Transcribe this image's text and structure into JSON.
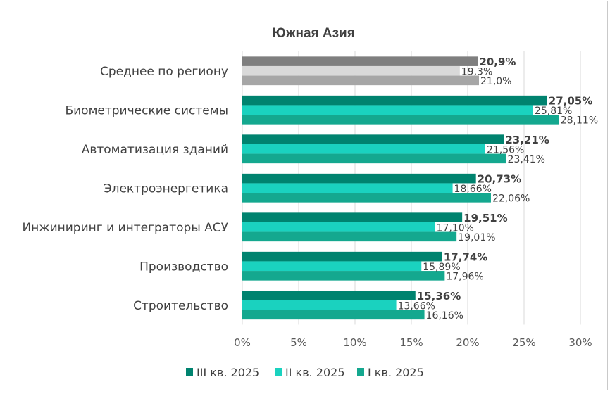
{
  "chart_data": {
    "type": "bar",
    "orientation": "horizontal",
    "title": "Южная Азия",
    "categories": [
      "Среднее по региону",
      "Биометрические системы",
      "Автоматизация зданий",
      "Электроэнергетика",
      "Инжиниринг и интеграторы АСУ",
      "Производство",
      "Строительство"
    ],
    "series": [
      {
        "name": "III кв. 2025",
        "color": "#00836f",
        "highlight_color": "#7f7f7f",
        "values": [
          20.9,
          27.05,
          23.21,
          20.73,
          19.51,
          17.74,
          15.36
        ],
        "labels": [
          "20,9%",
          "27,05%",
          "23,21%",
          "20,73%",
          "19,51%",
          "17,74%",
          "15,36%"
        ]
      },
      {
        "name": "II кв. 2025",
        "color": "#1ad2bf",
        "highlight_color": "#d9d9d9",
        "values": [
          19.3,
          25.81,
          21.56,
          18.66,
          17.1,
          15.89,
          13.66
        ],
        "labels": [
          "19,3%",
          "25,81%",
          "21,56%",
          "18,66%",
          "17,10%",
          "15,89%",
          "13,66%"
        ]
      },
      {
        "name": "I кв. 2025",
        "color": "#14a88f",
        "highlight_color": "#a6a6a6",
        "values": [
          21.0,
          28.11,
          23.41,
          22.06,
          19.01,
          17.96,
          16.16
        ],
        "labels": [
          "21,0%",
          "28,11%",
          "23,41%",
          "22,06%",
          "19,01%",
          "17,96%",
          "16,16%"
        ]
      }
    ],
    "xlim": [
      0,
      30
    ],
    "ticks": [
      0,
      5,
      10,
      15,
      20,
      25,
      30
    ],
    "tick_labels": [
      "0%",
      "5%",
      "10%",
      "15%",
      "20%",
      "25%",
      "30%"
    ],
    "grid": true,
    "legend": "bottom"
  }
}
